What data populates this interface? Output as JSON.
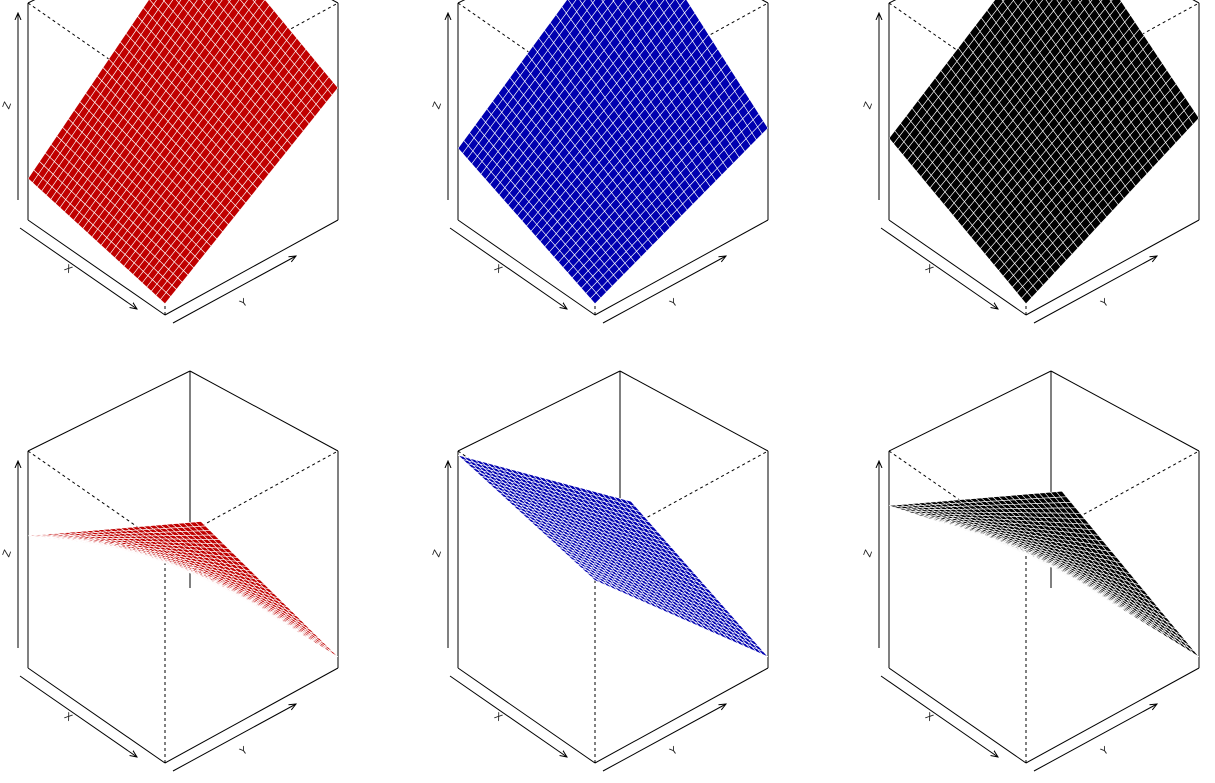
{
  "chart_data": [
    {
      "type": "surface",
      "color": "#c00000",
      "grid_line_color": "#ffffff",
      "axis_labels": {
        "x": "X",
        "y": "Y",
        "z": "Z"
      },
      "x": [
        0,
        1
      ],
      "y": [
        0,
        1
      ],
      "corner_z": {
        "x0y0": 0.15,
        "x1y0": 0.0,
        "x0y1": 0.95,
        "x1y1": 0.6
      },
      "description": "decreasing surface, highest at far-left corner"
    },
    {
      "type": "surface",
      "color": "#0000b0",
      "grid_line_color": "#ffffff",
      "axis_labels": {
        "x": "X",
        "y": "Y",
        "z": "Z"
      },
      "x": [
        0,
        1
      ],
      "y": [
        0,
        1
      ],
      "corner_z": {
        "x0y0": 0.3,
        "x1y0": 0.0,
        "x0y1": 1.0,
        "x1y1": 0.4
      },
      "description": "decreasing convex surface"
    },
    {
      "type": "surface",
      "color": "#000000",
      "grid_line_color": "#ffffff",
      "axis_labels": {
        "x": "X",
        "y": "Y",
        "z": "Z"
      },
      "x": [
        0,
        1
      ],
      "y": [
        0,
        1
      ],
      "corner_z": {
        "x0y0": 0.35,
        "x1y0": 0.0,
        "x0y1": 1.0,
        "x1y1": 0.45
      },
      "description": "decreasing bowl-shaped surface"
    },
    {
      "type": "surface",
      "color": "#c00000",
      "grid_line_color": "#ffffff",
      "axis_labels": {
        "x": "X",
        "y": "Y",
        "z": "Z"
      },
      "x": [
        0,
        1
      ],
      "y": [
        0,
        1
      ],
      "corner_z": {
        "x0y0": 0.6,
        "x1y0": 1.0,
        "x0y1": 0.2,
        "x1y1": 0.0
      },
      "description": "increasing surface, highest at far-right corner"
    },
    {
      "type": "surface",
      "color": "#0000b0",
      "grid_line_color": "#ffffff",
      "axis_labels": {
        "x": "X",
        "y": "Y",
        "z": "Z"
      },
      "x": [
        0,
        1
      ],
      "y": [
        0,
        1
      ],
      "corner_z": {
        "x0y0": 1.0,
        "x1y0": 0.85,
        "x0y1": 0.3,
        "x1y1": 0.0
      },
      "description": "increasing surface with ridge"
    },
    {
      "type": "surface",
      "color": "#000000",
      "grid_line_color": "#ffffff",
      "axis_labels": {
        "x": "X",
        "y": "Y",
        "z": "Z"
      },
      "x": [
        0,
        1
      ],
      "y": [
        0,
        1
      ],
      "corner_z": {
        "x0y0": 0.75,
        "x1y0": 1.0,
        "x0y1": 0.35,
        "x1y1": 0.0
      },
      "description": "increasing concave surface"
    }
  ]
}
